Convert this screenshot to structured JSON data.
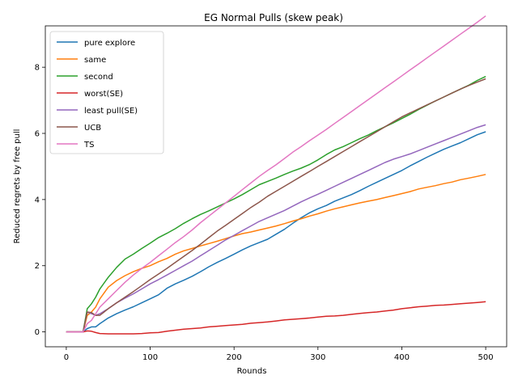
{
  "chart_data": {
    "type": "line",
    "title": "EG Normal Pulls (skew peak)",
    "xlabel": "Rounds",
    "ylabel": "Reduced regrets by free pull",
    "xlim": [
      -25,
      525
    ],
    "ylim": [
      -0.45,
      9.25
    ],
    "xticks": [
      0,
      100,
      200,
      300,
      400,
      500
    ],
    "yticks": [
      0,
      2,
      4,
      6,
      8
    ],
    "grid": false,
    "legend_position": "top-left",
    "series": [
      {
        "name": "pure explore",
        "color": "#1f77b4",
        "x": [
          0,
          10,
          20,
          25,
          30,
          35,
          40,
          50,
          60,
          70,
          80,
          90,
          100,
          110,
          120,
          130,
          140,
          150,
          160,
          170,
          180,
          190,
          200,
          210,
          220,
          230,
          240,
          250,
          260,
          270,
          280,
          290,
          300,
          310,
          320,
          330,
          340,
          350,
          360,
          370,
          380,
          390,
          400,
          410,
          420,
          430,
          440,
          450,
          460,
          470,
          480,
          490,
          500
        ],
        "y": [
          0,
          0,
          0,
          0.1,
          0.15,
          0.15,
          0.25,
          0.42,
          0.55,
          0.66,
          0.76,
          0.88,
          1.0,
          1.12,
          1.32,
          1.45,
          1.56,
          1.68,
          1.82,
          1.97,
          2.1,
          2.22,
          2.35,
          2.48,
          2.6,
          2.7,
          2.8,
          2.95,
          3.1,
          3.28,
          3.45,
          3.6,
          3.72,
          3.82,
          3.95,
          4.05,
          4.15,
          4.27,
          4.4,
          4.52,
          4.64,
          4.76,
          4.88,
          5.02,
          5.15,
          5.28,
          5.4,
          5.52,
          5.62,
          5.72,
          5.84,
          5.96,
          6.05
        ]
      },
      {
        "name": "same",
        "color": "#ff7f0e",
        "x": [
          0,
          10,
          20,
          25,
          30,
          35,
          40,
          50,
          60,
          70,
          80,
          90,
          100,
          110,
          120,
          130,
          140,
          150,
          160,
          170,
          180,
          190,
          200,
          210,
          220,
          230,
          240,
          250,
          260,
          270,
          280,
          290,
          300,
          310,
          320,
          330,
          340,
          350,
          360,
          370,
          380,
          390,
          400,
          410,
          420,
          430,
          440,
          450,
          460,
          470,
          480,
          490,
          500
        ],
        "y": [
          0,
          0,
          0,
          0.5,
          0.6,
          0.75,
          1.0,
          1.35,
          1.55,
          1.7,
          1.82,
          1.92,
          2.0,
          2.12,
          2.22,
          2.35,
          2.45,
          2.52,
          2.6,
          2.67,
          2.74,
          2.82,
          2.9,
          2.97,
          3.02,
          3.08,
          3.14,
          3.2,
          3.27,
          3.35,
          3.42,
          3.5,
          3.57,
          3.65,
          3.72,
          3.78,
          3.84,
          3.9,
          3.95,
          4.0,
          4.06,
          4.12,
          4.18,
          4.24,
          4.32,
          4.37,
          4.42,
          4.48,
          4.53,
          4.6,
          4.65,
          4.7,
          4.76
        ]
      },
      {
        "name": "second",
        "color": "#2ca02c",
        "x": [
          0,
          10,
          20,
          25,
          30,
          35,
          40,
          50,
          60,
          70,
          80,
          90,
          100,
          110,
          120,
          130,
          140,
          150,
          160,
          170,
          180,
          190,
          200,
          210,
          220,
          230,
          240,
          250,
          260,
          270,
          280,
          290,
          300,
          310,
          320,
          330,
          340,
          350,
          360,
          370,
          380,
          390,
          400,
          410,
          420,
          430,
          440,
          450,
          460,
          470,
          480,
          490,
          500
        ],
        "y": [
          0,
          0,
          0,
          0.7,
          0.85,
          1.05,
          1.3,
          1.65,
          1.95,
          2.2,
          2.35,
          2.52,
          2.68,
          2.85,
          2.98,
          3.12,
          3.28,
          3.42,
          3.55,
          3.66,
          3.78,
          3.9,
          4.02,
          4.15,
          4.3,
          4.45,
          4.55,
          4.65,
          4.76,
          4.86,
          4.95,
          5.06,
          5.2,
          5.36,
          5.5,
          5.6,
          5.72,
          5.84,
          5.95,
          6.08,
          6.2,
          6.32,
          6.45,
          6.58,
          6.72,
          6.85,
          6.98,
          7.1,
          7.22,
          7.34,
          7.46,
          7.6,
          7.72
        ]
      },
      {
        "name": "worst(SE)",
        "color": "#d62728",
        "x": [
          0,
          10,
          20,
          25,
          30,
          35,
          40,
          50,
          60,
          70,
          80,
          90,
          100,
          110,
          120,
          130,
          140,
          150,
          160,
          170,
          180,
          190,
          200,
          210,
          220,
          230,
          240,
          250,
          260,
          270,
          280,
          290,
          300,
          310,
          320,
          330,
          340,
          350,
          360,
          370,
          380,
          390,
          400,
          410,
          420,
          430,
          440,
          450,
          460,
          470,
          480,
          490,
          500
        ],
        "y": [
          0,
          0,
          0,
          0.03,
          0.02,
          -0.02,
          -0.05,
          -0.06,
          -0.06,
          -0.06,
          -0.06,
          -0.05,
          -0.03,
          -0.02,
          0.02,
          0.05,
          0.08,
          0.1,
          0.12,
          0.15,
          0.17,
          0.19,
          0.21,
          0.23,
          0.26,
          0.28,
          0.3,
          0.33,
          0.36,
          0.38,
          0.4,
          0.42,
          0.45,
          0.47,
          0.48,
          0.5,
          0.53,
          0.56,
          0.58,
          0.6,
          0.63,
          0.66,
          0.7,
          0.73,
          0.76,
          0.78,
          0.8,
          0.81,
          0.83,
          0.85,
          0.87,
          0.89,
          0.91
        ]
      },
      {
        "name": "least pull(SE)",
        "color": "#9467bd",
        "x": [
          0,
          10,
          20,
          25,
          30,
          35,
          40,
          50,
          60,
          70,
          80,
          90,
          100,
          110,
          120,
          130,
          140,
          150,
          160,
          170,
          180,
          190,
          200,
          210,
          220,
          230,
          240,
          250,
          260,
          270,
          280,
          290,
          300,
          310,
          320,
          330,
          340,
          350,
          360,
          370,
          380,
          390,
          400,
          410,
          420,
          430,
          440,
          450,
          460,
          470,
          480,
          490,
          500
        ],
        "y": [
          0,
          0,
          0,
          0.6,
          0.55,
          0.5,
          0.55,
          0.7,
          0.88,
          1.02,
          1.15,
          1.3,
          1.45,
          1.58,
          1.72,
          1.86,
          2.0,
          2.14,
          2.3,
          2.46,
          2.62,
          2.78,
          2.92,
          3.06,
          3.2,
          3.34,
          3.45,
          3.56,
          3.67,
          3.8,
          3.93,
          4.05,
          4.16,
          4.28,
          4.4,
          4.52,
          4.64,
          4.76,
          4.88,
          5.0,
          5.12,
          5.22,
          5.3,
          5.38,
          5.48,
          5.58,
          5.68,
          5.78,
          5.88,
          5.98,
          6.08,
          6.18,
          6.26
        ]
      },
      {
        "name": "UCB",
        "color": "#8c564b",
        "x": [
          0,
          10,
          20,
          25,
          30,
          35,
          40,
          50,
          60,
          70,
          80,
          90,
          100,
          110,
          120,
          130,
          140,
          150,
          160,
          170,
          180,
          190,
          200,
          210,
          220,
          230,
          240,
          250,
          260,
          270,
          280,
          290,
          300,
          310,
          320,
          330,
          340,
          350,
          360,
          370,
          380,
          390,
          400,
          410,
          420,
          430,
          440,
          450,
          460,
          470,
          480,
          490,
          500
        ],
        "y": [
          0,
          0,
          0,
          0.6,
          0.58,
          0.5,
          0.5,
          0.7,
          0.88,
          1.05,
          1.22,
          1.4,
          1.58,
          1.75,
          1.92,
          2.1,
          2.28,
          2.46,
          2.65,
          2.85,
          3.05,
          3.22,
          3.4,
          3.58,
          3.76,
          3.92,
          4.1,
          4.25,
          4.4,
          4.55,
          4.7,
          4.85,
          5.0,
          5.15,
          5.3,
          5.45,
          5.6,
          5.75,
          5.9,
          6.05,
          6.2,
          6.35,
          6.5,
          6.62,
          6.74,
          6.86,
          6.98,
          7.1,
          7.22,
          7.34,
          7.45,
          7.55,
          7.65
        ]
      },
      {
        "name": "TS",
        "color": "#e377c2",
        "x": [
          0,
          10,
          20,
          25,
          30,
          35,
          40,
          50,
          60,
          70,
          80,
          90,
          100,
          110,
          120,
          130,
          140,
          150,
          160,
          170,
          180,
          190,
          200,
          210,
          220,
          230,
          240,
          250,
          260,
          270,
          280,
          290,
          300,
          310,
          320,
          330,
          340,
          350,
          360,
          370,
          380,
          390,
          400,
          410,
          420,
          430,
          440,
          450,
          460,
          470,
          480,
          490,
          500
        ],
        "y": [
          0,
          0,
          0,
          0.25,
          0.35,
          0.55,
          0.75,
          1.0,
          1.25,
          1.5,
          1.72,
          1.92,
          2.1,
          2.3,
          2.5,
          2.7,
          2.88,
          3.08,
          3.3,
          3.5,
          3.7,
          3.9,
          4.1,
          4.3,
          4.5,
          4.7,
          4.88,
          5.05,
          5.24,
          5.43,
          5.6,
          5.78,
          5.95,
          6.12,
          6.3,
          6.48,
          6.66,
          6.84,
          7.02,
          7.2,
          7.38,
          7.56,
          7.74,
          7.92,
          8.1,
          8.28,
          8.46,
          8.64,
          8.82,
          9.0,
          9.18,
          9.36,
          9.55
        ]
      }
    ]
  }
}
